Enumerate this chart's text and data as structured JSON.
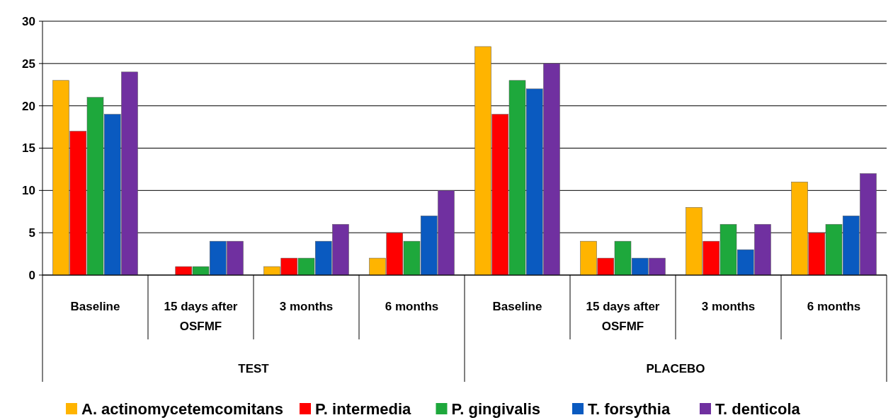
{
  "chart_data": {
    "type": "bar",
    "categories": [
      "Baseline",
      "15 days after OSFMF",
      "3 months",
      "6 months",
      "Baseline",
      "15 days after OSFMF",
      "3 months",
      "6 months"
    ],
    "series": [
      {
        "name": "A. actinomycetemcomitans",
        "color": "#ffb400",
        "values": [
          23,
          0,
          1,
          2,
          27,
          4,
          8,
          11
        ]
      },
      {
        "name": "P. intermedia",
        "color": "#ff0000",
        "values": [
          17,
          1,
          2,
          5,
          19,
          2,
          4,
          5
        ]
      },
      {
        "name": "P. gingivalis",
        "color": "#1ea83c",
        "values": [
          21,
          1,
          2,
          4,
          23,
          4,
          6,
          6
        ]
      },
      {
        "name": "T. forsythia",
        "color": "#0a5ac0",
        "values": [
          19,
          4,
          4,
          7,
          22,
          2,
          3,
          7
        ]
      },
      {
        "name": "T. denticola",
        "color": "#7030a0",
        "values": [
          24,
          4,
          6,
          10,
          25,
          2,
          6,
          12
        ]
      }
    ],
    "annotations": [
      "TEST",
      "PLACEBO"
    ],
    "ylim": [
      0,
      30
    ],
    "yticks": [
      0,
      5,
      10,
      15,
      20,
      25,
      30
    ],
    "grid": "y",
    "legend": "bottom"
  }
}
